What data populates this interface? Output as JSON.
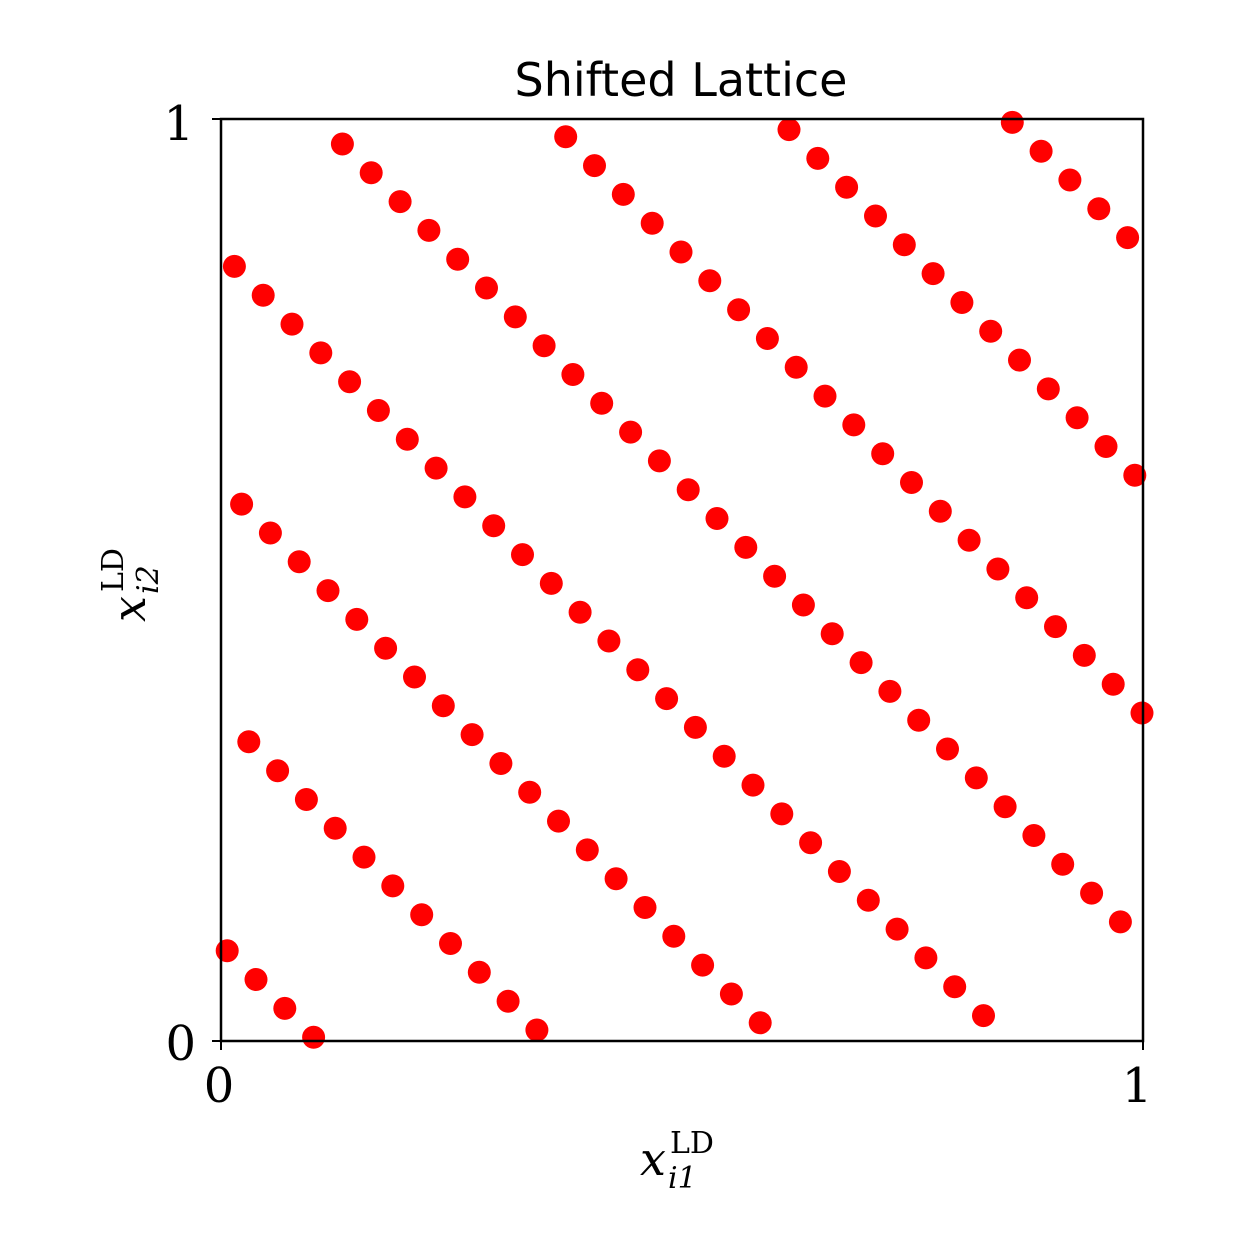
{
  "chart_data": {
    "type": "scatter",
    "title": "Shifted Lattice",
    "xlabel": {
      "var": "x",
      "sup": "LD",
      "sub": "i1"
    },
    "ylabel": {
      "var": "x",
      "sup": "LD",
      "sub": "i2"
    },
    "xlim": [
      0,
      1
    ],
    "ylim": [
      0,
      1
    ],
    "xticks": [
      0,
      1
    ],
    "yticks": [
      0,
      1
    ],
    "xtick_labels": [
      "0",
      "1"
    ],
    "ytick_labels": [
      "0",
      "1"
    ],
    "grid": false,
    "marker_color": "#ff0000",
    "lattice": {
      "n": 128,
      "generator": [
        1,
        95
      ],
      "shift": [
        0.0067,
        0.0979
      ]
    }
  }
}
